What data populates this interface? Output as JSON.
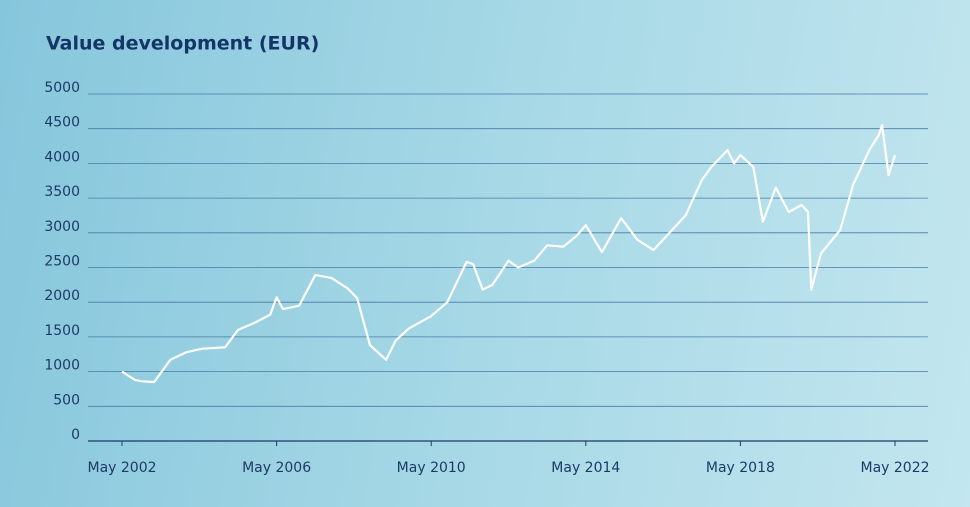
{
  "chart_data": {
    "type": "line",
    "title": "Value development (EUR)",
    "x": [
      "2002-05",
      "2002-09",
      "2002-11",
      "2003-03",
      "2003-08",
      "2004-01",
      "2004-06",
      "2005-01",
      "2005-05",
      "2005-10",
      "2006-03",
      "2006-05",
      "2006-07",
      "2006-12",
      "2007-05",
      "2007-10",
      "2008-03",
      "2008-06",
      "2008-10",
      "2009-03",
      "2009-06",
      "2009-10",
      "2010-05",
      "2010-10",
      "2011-04",
      "2011-06",
      "2011-09",
      "2011-12",
      "2012-05",
      "2012-08",
      "2013-01",
      "2013-05",
      "2013-10",
      "2014-02",
      "2014-05",
      "2014-10",
      "2015-04",
      "2015-09",
      "2016-02",
      "2016-06",
      "2016-12",
      "2017-05",
      "2017-08",
      "2018-01",
      "2018-03",
      "2018-05",
      "2018-09",
      "2018-12",
      "2019-04",
      "2019-08",
      "2019-12",
      "2020-02",
      "2020-03",
      "2020-06",
      "2020-12",
      "2021-04",
      "2021-09",
      "2021-12",
      "2022-01",
      "2022-03",
      "2022-05"
    ],
    "series": [
      {
        "name": "Value",
        "color": "#ffffff",
        "values": [
          1000,
          880,
          860,
          850,
          1170,
          1280,
          1330,
          1350,
          1600,
          1700,
          1820,
          2070,
          1900,
          1950,
          2390,
          2350,
          2200,
          2060,
          1380,
          1170,
          1450,
          1620,
          1800,
          2000,
          2580,
          2550,
          2180,
          2250,
          2600,
          2500,
          2600,
          2820,
          2800,
          2950,
          3110,
          2720,
          3210,
          2900,
          2750,
          2950,
          3250,
          3760,
          3950,
          4190,
          4000,
          4120,
          3950,
          3160,
          3650,
          3300,
          3400,
          3300,
          2180,
          2700,
          3040,
          3690,
          4190,
          4410,
          4550,
          3830,
          4120
        ]
      }
    ],
    "xlim": [
      "2002-05",
      "2022-05"
    ],
    "xticks": [
      {
        "value": "2002-05",
        "label": "May 2002"
      },
      {
        "value": "2006-05",
        "label": "May 2006"
      },
      {
        "value": "2010-05",
        "label": "May 2010"
      },
      {
        "value": "2014-05",
        "label": "May 2014"
      },
      {
        "value": "2018-05",
        "label": "May 2018"
      },
      {
        "value": "2022-05",
        "label": "May 2022"
      }
    ],
    "ylim": [
      0,
      5000
    ],
    "yticks": [
      0,
      500,
      1000,
      1500,
      2000,
      2500,
      3000,
      3500,
      4000,
      4500,
      5000
    ],
    "grid": true
  }
}
